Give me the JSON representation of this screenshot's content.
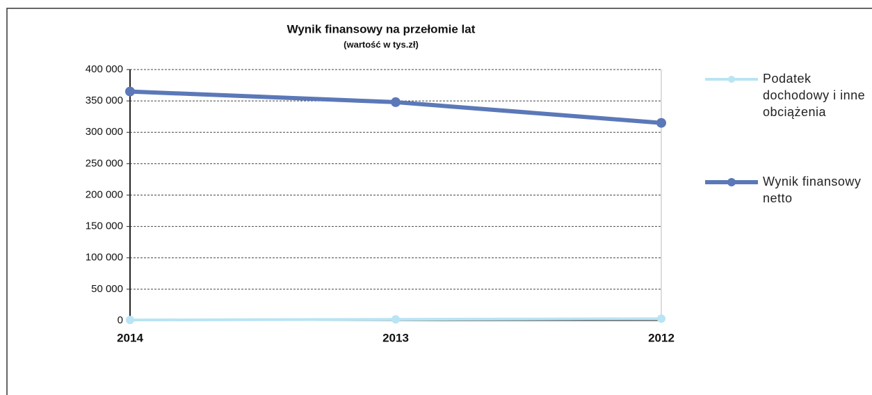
{
  "chart_data": {
    "type": "line",
    "title": "Wynik finansowy na przełomie lat",
    "subtitle": "(wartość w tys.zł)",
    "categories": [
      "2014",
      "2013",
      "2012"
    ],
    "series": [
      {
        "name": "Podatek dochodowy i inne obciążenia",
        "color": "#b9e4f3",
        "values": [
          1000,
          2000,
          3000
        ]
      },
      {
        "name": "Wynik finansowy netto",
        "color": "#5b78b8",
        "values": [
          365000,
          348000,
          315000
        ]
      }
    ],
    "ylim": [
      0,
      400000
    ],
    "yticks": [
      0,
      {
        "value": 50000,
        "label": "50 000"
      },
      {
        "value": 100000,
        "label": "100 000"
      },
      {
        "value": 150000,
        "label": "150 000"
      },
      {
        "value": 200000,
        "label": "200 000"
      },
      {
        "value": 250000,
        "label": "250 000"
      },
      {
        "value": 300000,
        "label": "300 000"
      },
      {
        "value": 350000,
        "label": "350 000"
      },
      {
        "value": 400000,
        "label": "400 000"
      }
    ],
    "grid": true,
    "legend": "right"
  }
}
